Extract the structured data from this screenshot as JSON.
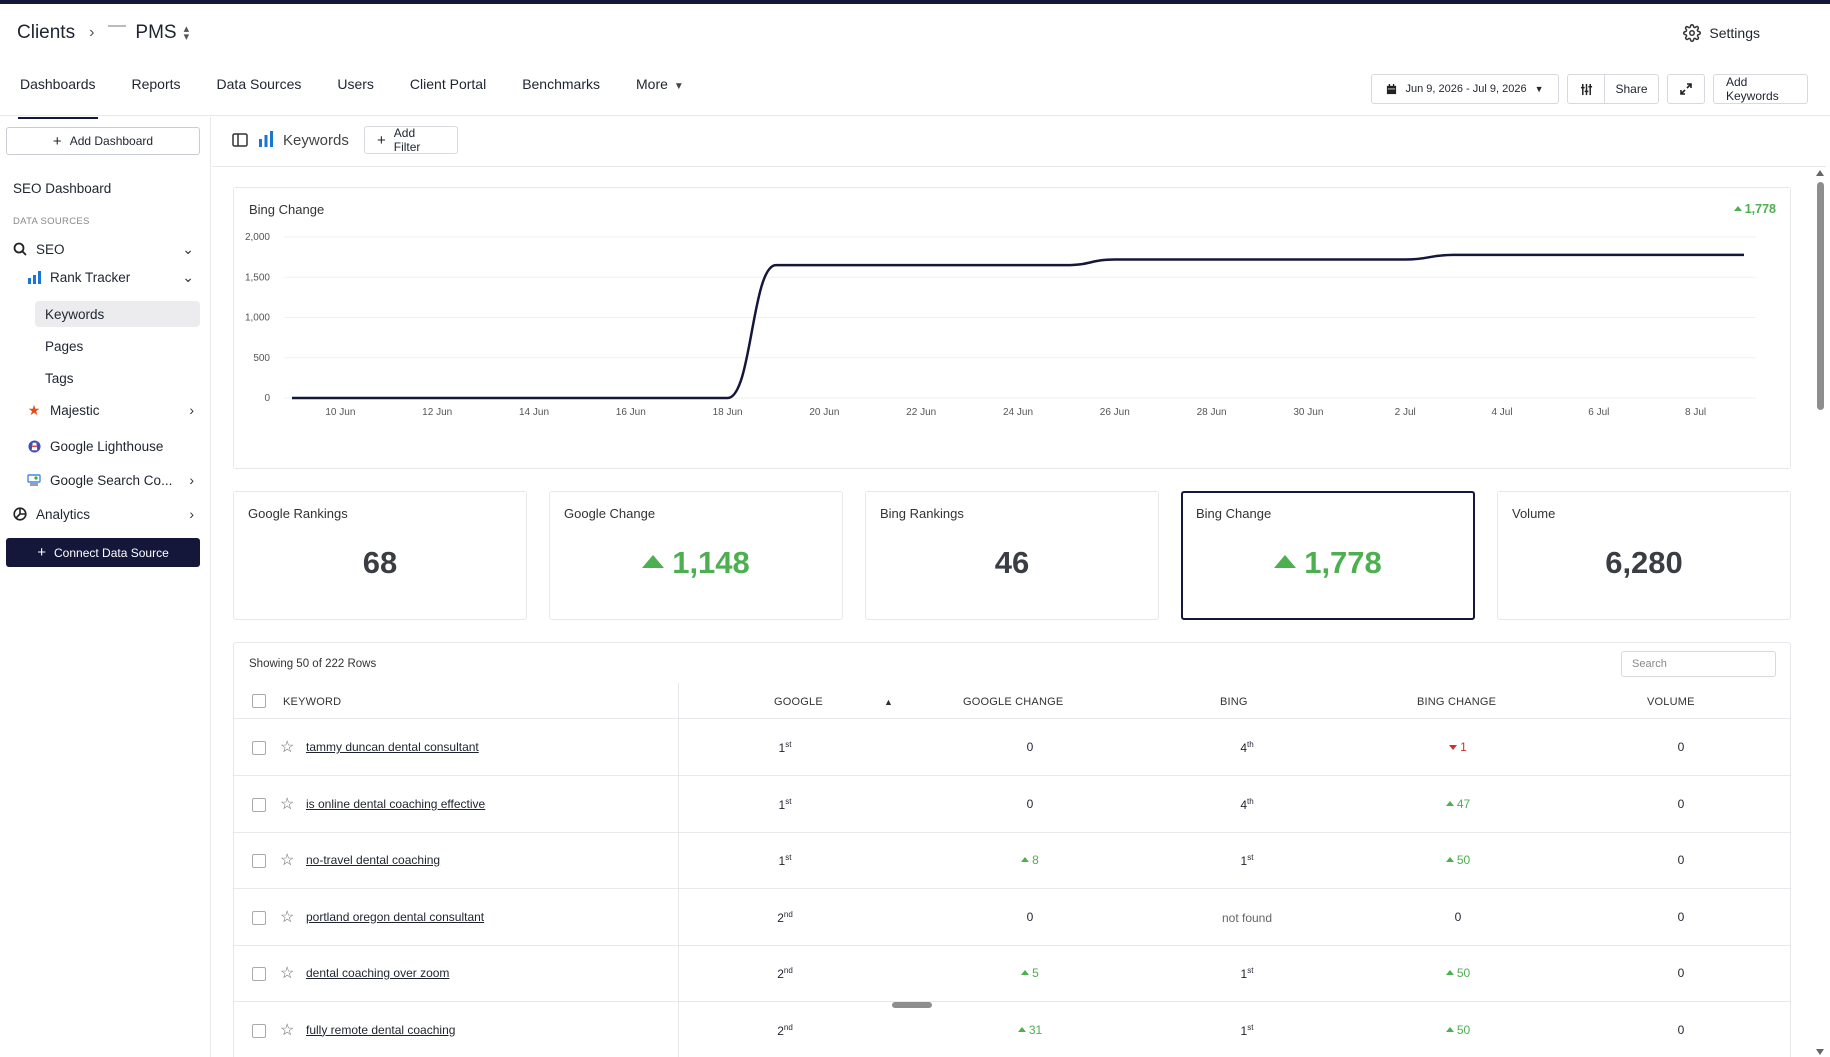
{
  "breadcrumb": {
    "root": "Clients",
    "client": "PMS"
  },
  "settings_label": "Settings",
  "nav_tabs": [
    {
      "label": "Dashboards",
      "active": true
    },
    {
      "label": "Reports"
    },
    {
      "label": "Data Sources"
    },
    {
      "label": "Users"
    },
    {
      "label": "Client Portal"
    },
    {
      "label": "Benchmarks"
    },
    {
      "label": "More"
    }
  ],
  "header_actions": {
    "date_range": "Jun 9, 2026 - Jul 9, 2026",
    "share": "Share",
    "add_keywords": "Add Keywords"
  },
  "sidebar": {
    "add_dashboard": "Add Dashboard",
    "dashboard_title": "SEO Dashboard",
    "section_label": "DATA SOURCES",
    "items": [
      {
        "label": "SEO",
        "icon": "search-icon"
      },
      {
        "label": "Rank Tracker",
        "icon": "bar-chart-icon"
      },
      {
        "label": "Keywords",
        "active": true
      },
      {
        "label": "Pages"
      },
      {
        "label": "Tags"
      },
      {
        "label": "Majestic",
        "icon": "star-icon"
      },
      {
        "label": "Google Lighthouse",
        "icon": "lighthouse-icon"
      },
      {
        "label": "Google Search Co...",
        "icon": "search-console-icon"
      },
      {
        "label": "Analytics",
        "icon": "analytics-icon"
      }
    ],
    "connect": "Connect Data Source"
  },
  "toolbar": {
    "page_label": "Keywords",
    "add_filter": "Add Filter"
  },
  "chart_data": {
    "type": "line",
    "title": "Bing Change",
    "badge": "1,778",
    "x": [
      "9 Jun",
      "10 Jun",
      "11 Jun",
      "12 Jun",
      "13 Jun",
      "14 Jun",
      "15 Jun",
      "16 Jun",
      "17 Jun",
      "18 Jun",
      "19 Jun",
      "20 Jun",
      "21 Jun",
      "22 Jun",
      "23 Jun",
      "24 Jun",
      "25 Jun",
      "26 Jun",
      "27 Jun",
      "28 Jun",
      "29 Jun",
      "30 Jun",
      "1 Jul",
      "2 Jul",
      "3 Jul",
      "4 Jul",
      "5 Jul",
      "6 Jul",
      "7 Jul",
      "8 Jul",
      "9 Jul"
    ],
    "values": [
      0,
      0,
      0,
      0,
      0,
      0,
      0,
      0,
      0,
      0,
      1650,
      1650,
      1650,
      1650,
      1650,
      1650,
      1650,
      1720,
      1720,
      1720,
      1720,
      1720,
      1720,
      1720,
      1778,
      1778,
      1778,
      1778,
      1778,
      1778,
      1778
    ],
    "xticks": [
      "10 Jun",
      "12 Jun",
      "14 Jun",
      "16 Jun",
      "18 Jun",
      "20 Jun",
      "22 Jun",
      "24 Jun",
      "26 Jun",
      "28 Jun",
      "30 Jun",
      "2 Jul",
      "4 Jul",
      "6 Jul",
      "8 Jul"
    ],
    "yticks": [
      "0",
      "500",
      "1,000",
      "1,500",
      "2,000"
    ],
    "ylim": [
      0,
      2000
    ],
    "grid": true,
    "line_color": "#14163a"
  },
  "kpis": [
    {
      "label": "Google Rankings",
      "value": "68",
      "up": false
    },
    {
      "label": "Google Change",
      "value": "1,148",
      "up": true
    },
    {
      "label": "Bing Rankings",
      "value": "46",
      "up": false
    },
    {
      "label": "Bing Change",
      "value": "1,778",
      "up": true,
      "selected": true
    },
    {
      "label": "Volume",
      "value": "6,280",
      "up": false
    }
  ],
  "table": {
    "rows_info": "Showing 50 of 222 Rows",
    "search_placeholder": "Search",
    "columns": [
      "KEYWORD",
      "GOOGLE",
      "GOOGLE CHANGE",
      "BING",
      "BING CHANGE",
      "VOLUME"
    ],
    "rows": [
      {
        "keyword": "tammy duncan dental consultant",
        "google": "1",
        "google_sup": "st",
        "google_change": "0",
        "gc_dir": "",
        "bing": "4",
        "bing_sup": "th",
        "bing_change": "1",
        "bc_dir": "down",
        "volume": "0"
      },
      {
        "keyword": "is online dental coaching effective",
        "google": "1",
        "google_sup": "st",
        "google_change": "0",
        "gc_dir": "",
        "bing": "4",
        "bing_sup": "th",
        "bing_change": "47",
        "bc_dir": "up",
        "volume": "0"
      },
      {
        "keyword": "no-travel dental coaching",
        "google": "1",
        "google_sup": "st",
        "google_change": "8",
        "gc_dir": "up",
        "bing": "1",
        "bing_sup": "st",
        "bing_change": "50",
        "bc_dir": "up",
        "volume": "0"
      },
      {
        "keyword": "portland oregon dental consultant",
        "google": "2",
        "google_sup": "nd",
        "google_change": "0",
        "gc_dir": "",
        "bing": "not found",
        "bing_sup": "",
        "bing_change": "0",
        "bc_dir": "",
        "volume": "0"
      },
      {
        "keyword": "dental coaching over zoom",
        "google": "2",
        "google_sup": "nd",
        "google_change": "5",
        "gc_dir": "up",
        "bing": "1",
        "bing_sup": "st",
        "bing_change": "50",
        "bc_dir": "up",
        "volume": "0"
      },
      {
        "keyword": "fully remote dental coaching",
        "google": "2",
        "google_sup": "nd",
        "google_change": "31",
        "gc_dir": "up",
        "bing": "1",
        "bing_sup": "st",
        "bing_change": "50",
        "bc_dir": "up",
        "volume": "0"
      }
    ]
  }
}
